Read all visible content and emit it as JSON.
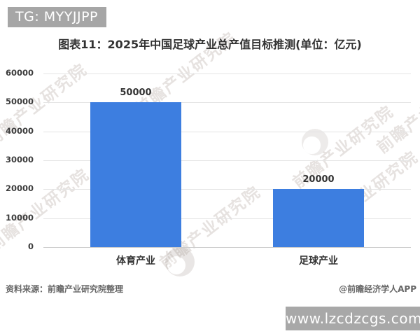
{
  "header": {
    "tg_badge": "TG: MYYJJPP"
  },
  "chart_data": {
    "type": "bar",
    "title": "图表11：2025年中国足球产业总产值目标推测(单位：亿元)",
    "unit": "亿元",
    "categories": [
      "体育产业",
      "足球产业"
    ],
    "values": [
      50000,
      20000
    ],
    "data_labels": [
      "50000",
      "20000"
    ],
    "ylim": [
      0,
      60000
    ],
    "yticks": [
      0,
      10000,
      20000,
      30000,
      40000,
      50000,
      60000
    ],
    "grid": true,
    "legend": "none",
    "bar_color": "#3d7ee0"
  },
  "watermark": {
    "text": "前瞻产业研究院"
  },
  "footer": {
    "source": "资料来源：前瞻产业研究院整理",
    "credit": "@前瞻经济学人APP",
    "url_badge": "www.lzcdzcgs.com"
  },
  "colors": {
    "bar": "#3d7ee0",
    "badge_bg": "#a6a6a6",
    "grid": "#e4e4e4",
    "axis": "#cccccc",
    "text": "#3c3c3c"
  }
}
